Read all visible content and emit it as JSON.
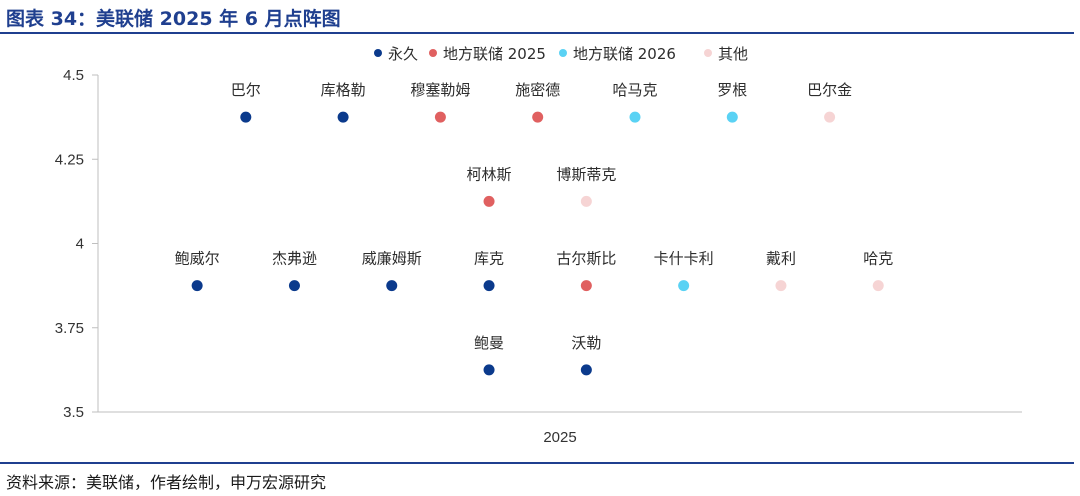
{
  "title": "图表 34：美联储 2025 年 6 月点阵图",
  "source": "资料来源：美联储，作者绘制，申万宏源研究",
  "chart_data": {
    "type": "scatter",
    "title": "图表 34：美联储 2025 年 6 月点阵图",
    "xlabel": "",
    "ylabel": "",
    "x_tick_label": "2025",
    "ylim": [
      3.5,
      4.5
    ],
    "y_ticks": [
      3.5,
      3.75,
      4,
      4.25,
      4.5
    ],
    "y_tick_labels": [
      "3.5",
      "3.75",
      "4",
      "4.25",
      "4.5"
    ],
    "grid": false,
    "legend_position": "top-center",
    "series": [
      {
        "name": "永久",
        "color": "#0b3a8c"
      },
      {
        "name": "地方联储 2025",
        "color": "#e06060"
      },
      {
        "name": "地方联储 2026",
        "color": "#5ad2f4"
      },
      {
        "name": "其他",
        "color": "#f6d4d4"
      }
    ],
    "points": [
      {
        "label": "巴尔",
        "series": 0,
        "col": 1,
        "y": 4.375
      },
      {
        "label": "库格勒",
        "series": 0,
        "col": 2,
        "y": 4.375
      },
      {
        "label": "穆塞勒姆",
        "series": 1,
        "col": 3,
        "y": 4.375
      },
      {
        "label": "施密德",
        "series": 1,
        "col": 4,
        "y": 4.375
      },
      {
        "label": "哈马克",
        "series": 2,
        "col": 5,
        "y": 4.375
      },
      {
        "label": "罗根",
        "series": 2,
        "col": 6,
        "y": 4.375
      },
      {
        "label": "巴尔金",
        "series": 3,
        "col": 7,
        "y": 4.375
      },
      {
        "label": "柯林斯",
        "series": 1,
        "col": 3.5,
        "y": 4.125
      },
      {
        "label": "博斯蒂克",
        "series": 3,
        "col": 4.5,
        "y": 4.125
      },
      {
        "label": "鲍威尔",
        "series": 0,
        "col": 0.5,
        "y": 3.875
      },
      {
        "label": "杰弗逊",
        "series": 0,
        "col": 1.5,
        "y": 3.875
      },
      {
        "label": "威廉姆斯",
        "series": 0,
        "col": 2.5,
        "y": 3.875
      },
      {
        "label": "库克",
        "series": 0,
        "col": 3.5,
        "y": 3.875
      },
      {
        "label": "古尔斯比",
        "series": 1,
        "col": 4.5,
        "y": 3.875
      },
      {
        "label": "卡什卡利",
        "series": 2,
        "col": 5.5,
        "y": 3.875
      },
      {
        "label": "戴利",
        "series": 3,
        "col": 6.5,
        "y": 3.875
      },
      {
        "label": "哈克",
        "series": 3,
        "col": 7.5,
        "y": 3.875
      },
      {
        "label": "鲍曼",
        "series": 0,
        "col": 3.5,
        "y": 3.625
      },
      {
        "label": "沃勒",
        "series": 0,
        "col": 4.5,
        "y": 3.625
      }
    ]
  }
}
